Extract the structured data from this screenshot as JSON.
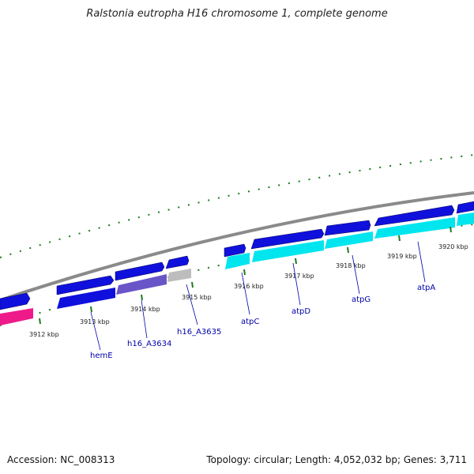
{
  "title": "Ralstonia eutropha H16 chromosome 1, complete genome",
  "accession": "Accession: NC_008313",
  "summary": "Topology: circular; Length: 4,052,032 bp; Genes: 3,711",
  "colors": {
    "backbone": "#8a8a8a",
    "tick": "#1e7a1e",
    "gene_blue": "#1010dd",
    "gene_cyan": "#00e5ee",
    "gene_purple": "#6a55c8",
    "gene_gray": "#bdbdbd",
    "gene_magenta": "#ee1a8a",
    "label": "#0000aa"
  },
  "kbp_labels": [
    "3912 kbp",
    "3913 kbp",
    "3914 kbp",
    "3915 kbp",
    "3916 kbp",
    "3917 kbp",
    "3918 kbp",
    "3919 kbp",
    "3920 kbp"
  ],
  "gene_labels": [
    "hemE",
    "h16_A3634",
    "h16_A3635",
    "atpC",
    "atpD",
    "atpG",
    "atpA"
  ]
}
